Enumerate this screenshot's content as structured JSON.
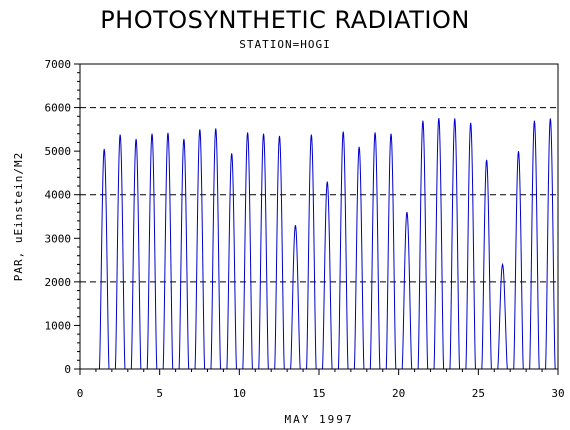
{
  "chart_data": {
    "type": "line",
    "title": "PHOTOSYNTHETIC RADIATION",
    "subtitle": "STATION=HOGI",
    "xlabel": "MAY 1997",
    "ylabel": "PAR, uEinstein/M2",
    "xlim": [
      0,
      30
    ],
    "ylim": [
      0,
      7000
    ],
    "xticks": [
      0,
      5,
      10,
      15,
      20,
      25,
      30
    ],
    "yticks": [
      0,
      1000,
      2000,
      3000,
      4000,
      5000,
      6000,
      7000
    ],
    "reference_lines_y": [
      2000,
      4000,
      6000
    ],
    "series_color": "#0000cc",
    "daily_peaks": [
      {
        "day": 1,
        "peak": 5050
      },
      {
        "day": 2,
        "peak": 5380
      },
      {
        "day": 3,
        "peak": 5280
      },
      {
        "day": 4,
        "peak": 5400
      },
      {
        "day": 5,
        "peak": 5420
      },
      {
        "day": 6,
        "peak": 5280
      },
      {
        "day": 7,
        "peak": 5500
      },
      {
        "day": 8,
        "peak": 5520
      },
      {
        "day": 9,
        "peak": 4950
      },
      {
        "day": 10,
        "peak": 5430
      },
      {
        "day": 11,
        "peak": 5400
      },
      {
        "day": 12,
        "peak": 5350
      },
      {
        "day": 13,
        "peak": 3300
      },
      {
        "day": 14,
        "peak": 5380
      },
      {
        "day": 15,
        "peak": 4300
      },
      {
        "day": 16,
        "peak": 5450
      },
      {
        "day": 17,
        "peak": 5100
      },
      {
        "day": 18,
        "peak": 5430
      },
      {
        "day": 19,
        "peak": 5400
      },
      {
        "day": 20,
        "peak": 3600
      },
      {
        "day": 21,
        "peak": 5700
      },
      {
        "day": 22,
        "peak": 5760
      },
      {
        "day": 23,
        "peak": 5750
      },
      {
        "day": 24,
        "peak": 5650
      },
      {
        "day": 25,
        "peak": 4800
      },
      {
        "day": 26,
        "peak": 2400
      },
      {
        "day": 27,
        "peak": 5000
      },
      {
        "day": 28,
        "peak": 5700
      },
      {
        "day": 29,
        "peak": 5750
      }
    ]
  }
}
